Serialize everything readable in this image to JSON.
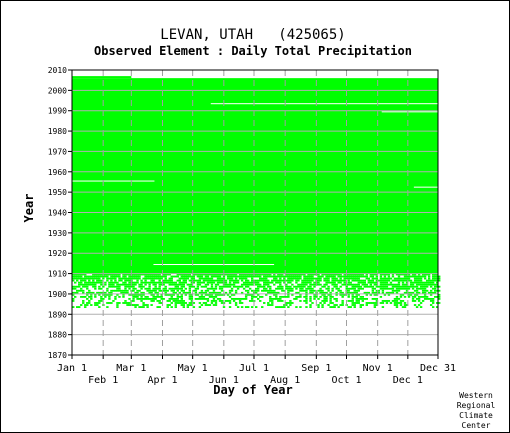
{
  "chart_data": {
    "type": "heatmap",
    "title": "LEVAN, UTAH   (425065)",
    "subtitle": "Observed Element : Daily Total Precipitation",
    "xlabel": "Day of Year",
    "ylabel": "Year",
    "xlim": [
      1,
      365
    ],
    "ylim": [
      1870,
      2010
    ],
    "x_ticks_upper": [
      {
        "label": "Jan 1",
        "day": 1
      },
      {
        "label": "Mar 1",
        "day": 60
      },
      {
        "label": "May 1",
        "day": 121
      },
      {
        "label": "Jul 1",
        "day": 182
      },
      {
        "label": "Sep 1",
        "day": 244
      },
      {
        "label": "Nov 1",
        "day": 305
      },
      {
        "label": "Dec 31",
        "day": 365
      }
    ],
    "x_ticks_lower": [
      {
        "label": "Feb 1",
        "day": 32
      },
      {
        "label": "Apr 1",
        "day": 91
      },
      {
        "label": "Jun 1",
        "day": 152
      },
      {
        "label": "Aug 1",
        "day": 213
      },
      {
        "label": "Oct 1",
        "day": 274
      },
      {
        "label": "Dec 1",
        "day": 335
      }
    ],
    "y_ticks": [
      1870,
      1880,
      1890,
      1900,
      1910,
      1920,
      1930,
      1940,
      1950,
      1960,
      1970,
      1980,
      1990,
      2000,
      2010
    ],
    "data_color": "#00ff00",
    "grid": true,
    "record": {
      "full_coverage_years": [
        1910,
        2005
      ],
      "full_coverage_extends_to_2006_days": [
        1,
        60
      ],
      "sparse_coverage_years": [
        1893,
        1909
      ],
      "gaps": [
        {
          "year": 1955,
          "day_start": 1,
          "day_end": 83
        },
        {
          "year": 1952,
          "day_start": 341,
          "day_end": 365
        },
        {
          "year": 1993,
          "day_start": 139,
          "day_end": 365
        },
        {
          "year": 1989,
          "day_start": 309,
          "day_end": 365
        },
        {
          "year": 1914,
          "day_start": 82,
          "day_end": 202
        }
      ]
    }
  },
  "credit": [
    "Western",
    "Regional",
    "Climate",
    "Center"
  ]
}
